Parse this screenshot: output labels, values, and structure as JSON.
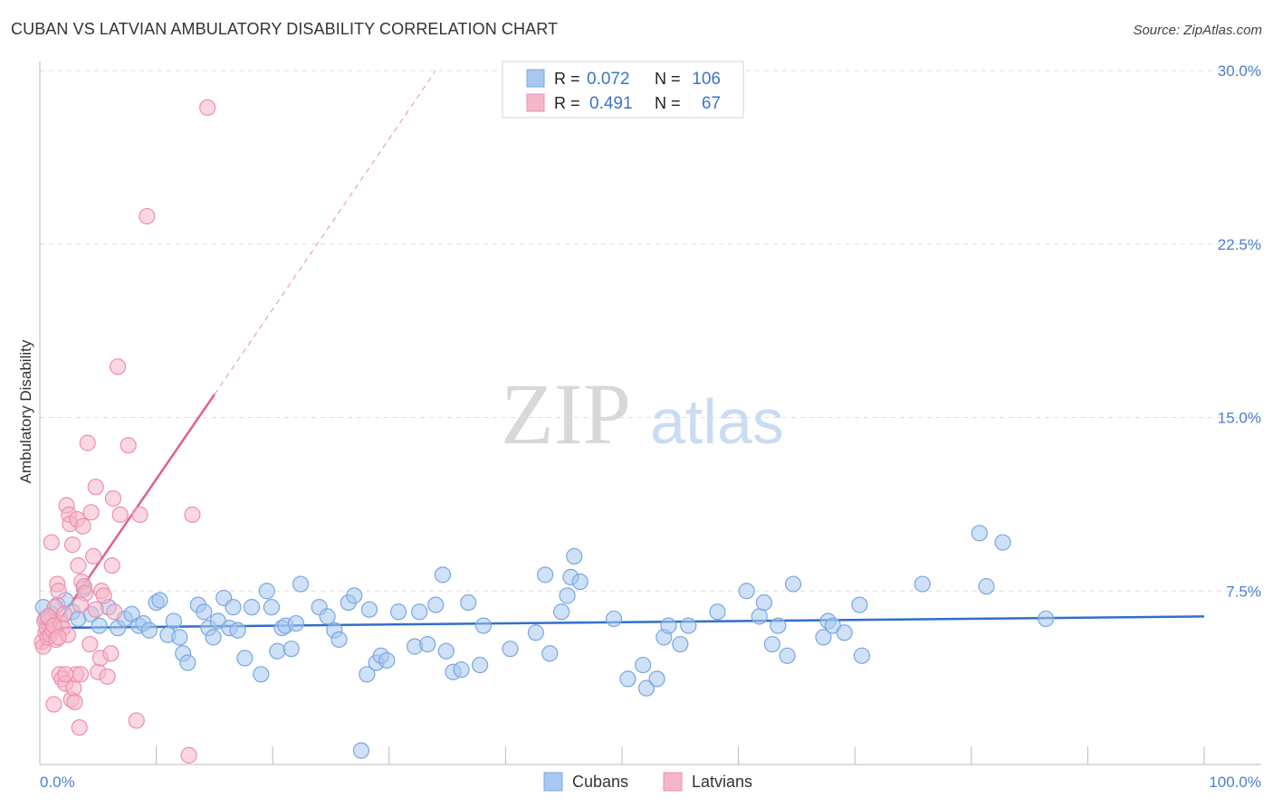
{
  "chart_data": {
    "type": "scatter",
    "title": "CUBAN VS LATVIAN AMBULATORY DISABILITY CORRELATION CHART",
    "source": "Source: ZipAtlas.com",
    "xlabel": "",
    "ylabel": "Ambulatory Disability",
    "xlim": [
      0,
      100
    ],
    "ylim": [
      0,
      30
    ],
    "x_tick_labels": [
      "0.0%",
      "100.0%"
    ],
    "y_ticks": [
      7.5,
      15.0,
      22.5,
      30.0
    ],
    "y_tick_labels": [
      "7.5%",
      "15.0%",
      "22.5%",
      "30.0%"
    ],
    "grid": true,
    "watermark": "ZIPatlas",
    "legend": {
      "placement": "top-center",
      "rows": [
        {
          "r_label": "R =",
          "r_value": "0.072",
          "n_label": "N =",
          "n_value": "106"
        },
        {
          "r_label": "R =",
          "r_value": "0.491",
          "n_label": "N =",
          "n_value": "67"
        }
      ]
    },
    "bottom_legend": [
      "Cubans",
      "Latvians"
    ],
    "colors": {
      "cubans_fill": "#a8c8f0",
      "cubans_stroke": "#7aa7e0",
      "cubans_line": "#2f6fcc",
      "latvians_fill": "#f6b6c9",
      "latvians_stroke": "#ee8fac",
      "latvians_line": "#e0608a",
      "tick_text": "#4a7fd0",
      "grid": "#dddddd"
    },
    "series": [
      {
        "name": "Cubans",
        "trend": {
          "x": [
            0,
            100
          ],
          "y": [
            5.9,
            6.4
          ]
        },
        "points": [
          [
            0.3,
            6.8
          ],
          [
            0.5,
            6.3
          ],
          [
            0.8,
            6.0
          ],
          [
            1.0,
            6.5
          ],
          [
            1.5,
            6.9
          ],
          [
            2.2,
            7.1
          ],
          [
            2.8,
            6.6
          ],
          [
            3.3,
            6.3
          ],
          [
            3.8,
            7.6
          ],
          [
            4.4,
            6.5
          ],
          [
            5.1,
            6.0
          ],
          [
            5.9,
            6.8
          ],
          [
            6.7,
            5.9
          ],
          [
            7.3,
            6.3
          ],
          [
            7.9,
            6.5
          ],
          [
            8.5,
            6.0
          ],
          [
            8.9,
            6.1
          ],
          [
            9.4,
            5.8
          ],
          [
            10.0,
            7.0
          ],
          [
            10.3,
            7.1
          ],
          [
            11.0,
            5.6
          ],
          [
            11.5,
            6.2
          ],
          [
            12.0,
            5.5
          ],
          [
            12.3,
            4.8
          ],
          [
            12.7,
            4.4
          ],
          [
            13.6,
            6.9
          ],
          [
            14.1,
            6.6
          ],
          [
            14.5,
            5.9
          ],
          [
            14.9,
            5.5
          ],
          [
            15.3,
            6.2
          ],
          [
            15.8,
            7.2
          ],
          [
            16.3,
            5.9
          ],
          [
            16.6,
            6.8
          ],
          [
            17.0,
            5.8
          ],
          [
            17.6,
            4.6
          ],
          [
            18.2,
            6.8
          ],
          [
            19.0,
            3.9
          ],
          [
            19.5,
            7.5
          ],
          [
            19.9,
            6.8
          ],
          [
            20.4,
            4.9
          ],
          [
            20.8,
            5.9
          ],
          [
            21.1,
            6.0
          ],
          [
            21.6,
            5.0
          ],
          [
            22.0,
            6.1
          ],
          [
            22.4,
            7.8
          ],
          [
            24.0,
            6.8
          ],
          [
            24.7,
            6.4
          ],
          [
            25.3,
            5.8
          ],
          [
            25.7,
            5.4
          ],
          [
            26.5,
            7.0
          ],
          [
            27.0,
            7.3
          ],
          [
            27.6,
            0.6
          ],
          [
            28.3,
            6.7
          ],
          [
            28.1,
            3.9
          ],
          [
            28.9,
            4.4
          ],
          [
            29.3,
            4.7
          ],
          [
            29.8,
            4.5
          ],
          [
            30.8,
            6.6
          ],
          [
            32.2,
            5.1
          ],
          [
            32.6,
            6.6
          ],
          [
            33.3,
            5.2
          ],
          [
            34.0,
            6.9
          ],
          [
            34.6,
            8.2
          ],
          [
            34.9,
            4.9
          ],
          [
            35.5,
            4.0
          ],
          [
            36.2,
            4.1
          ],
          [
            36.8,
            7.0
          ],
          [
            37.8,
            4.3
          ],
          [
            38.1,
            6.0
          ],
          [
            40.4,
            5.0
          ],
          [
            42.6,
            5.7
          ],
          [
            43.4,
            8.2
          ],
          [
            43.8,
            4.8
          ],
          [
            44.8,
            6.6
          ],
          [
            45.3,
            7.3
          ],
          [
            45.6,
            8.1
          ],
          [
            45.9,
            9.0
          ],
          [
            46.4,
            7.9
          ],
          [
            49.3,
            6.3
          ],
          [
            50.5,
            3.7
          ],
          [
            51.8,
            4.3
          ],
          [
            52.1,
            3.3
          ],
          [
            53.0,
            3.7
          ],
          [
            53.6,
            5.5
          ],
          [
            54.0,
            6.0
          ],
          [
            55.0,
            5.2
          ],
          [
            55.7,
            6.0
          ],
          [
            58.2,
            6.6
          ],
          [
            60.7,
            7.5
          ],
          [
            61.8,
            6.4
          ],
          [
            62.2,
            7.0
          ],
          [
            62.9,
            5.2
          ],
          [
            63.4,
            6.0
          ],
          [
            64.2,
            4.7
          ],
          [
            64.7,
            7.8
          ],
          [
            67.3,
            5.5
          ],
          [
            67.7,
            6.2
          ],
          [
            68.1,
            6.0
          ],
          [
            69.1,
            5.7
          ],
          [
            70.4,
            6.9
          ],
          [
            70.6,
            4.7
          ],
          [
            75.8,
            7.8
          ],
          [
            80.7,
            10.0
          ],
          [
            81.3,
            7.7
          ],
          [
            82.7,
            9.6
          ],
          [
            86.4,
            6.3
          ]
        ]
      },
      {
        "name": "Latvians",
        "trend": {
          "x": [
            0,
            15
          ],
          "y": [
            5.0,
            16.0
          ]
        },
        "trend_extension": {
          "x": [
            15,
            34
          ],
          "y": [
            16.0,
            30.0
          ]
        },
        "points": [
          [
            0.2,
            5.3
          ],
          [
            0.3,
            5.1
          ],
          [
            0.4,
            6.2
          ],
          [
            0.5,
            5.7
          ],
          [
            0.6,
            5.9
          ],
          [
            0.7,
            5.5
          ],
          [
            0.8,
            6.3
          ],
          [
            0.9,
            5.6
          ],
          [
            1.0,
            9.6
          ],
          [
            1.1,
            5.8
          ],
          [
            1.2,
            2.6
          ],
          [
            1.3,
            6.8
          ],
          [
            1.4,
            5.4
          ],
          [
            1.5,
            7.8
          ],
          [
            1.6,
            7.5
          ],
          [
            1.7,
            3.9
          ],
          [
            1.8,
            6.1
          ],
          [
            1.9,
            3.7
          ],
          [
            2.0,
            5.9
          ],
          [
            2.1,
            6.5
          ],
          [
            2.2,
            3.5
          ],
          [
            2.3,
            11.2
          ],
          [
            2.4,
            5.6
          ],
          [
            2.5,
            10.8
          ],
          [
            2.6,
            10.4
          ],
          [
            2.7,
            2.8
          ],
          [
            2.8,
            9.5
          ],
          [
            2.9,
            3.3
          ],
          [
            3.0,
            2.7
          ],
          [
            3.1,
            3.9
          ],
          [
            3.2,
            10.6
          ],
          [
            3.3,
            8.6
          ],
          [
            3.4,
            1.6
          ],
          [
            3.5,
            3.9
          ],
          [
            3.6,
            7.9
          ],
          [
            3.7,
            10.3
          ],
          [
            3.8,
            7.7
          ],
          [
            3.9,
            7.4
          ],
          [
            4.1,
            13.9
          ],
          [
            4.3,
            5.2
          ],
          [
            4.4,
            10.9
          ],
          [
            4.6,
            9.0
          ],
          [
            4.8,
            12.0
          ],
          [
            5.0,
            4.0
          ],
          [
            5.2,
            4.6
          ],
          [
            5.3,
            7.5
          ],
          [
            5.5,
            7.3
          ],
          [
            5.8,
            3.8
          ],
          [
            6.1,
            4.8
          ],
          [
            6.2,
            8.6
          ],
          [
            6.3,
            11.5
          ],
          [
            6.4,
            6.6
          ],
          [
            6.7,
            17.2
          ],
          [
            6.9,
            10.8
          ],
          [
            7.6,
            13.8
          ],
          [
            8.3,
            1.9
          ],
          [
            8.6,
            10.8
          ],
          [
            9.2,
            23.7
          ],
          [
            12.8,
            0.4
          ],
          [
            13.1,
            10.8
          ],
          [
            14.4,
            28.4
          ],
          [
            0.7,
            6.4
          ],
          [
            1.2,
            6.0
          ],
          [
            1.6,
            5.5
          ],
          [
            2.2,
            3.9
          ],
          [
            3.5,
            6.9
          ],
          [
            4.8,
            6.7
          ]
        ]
      }
    ]
  }
}
